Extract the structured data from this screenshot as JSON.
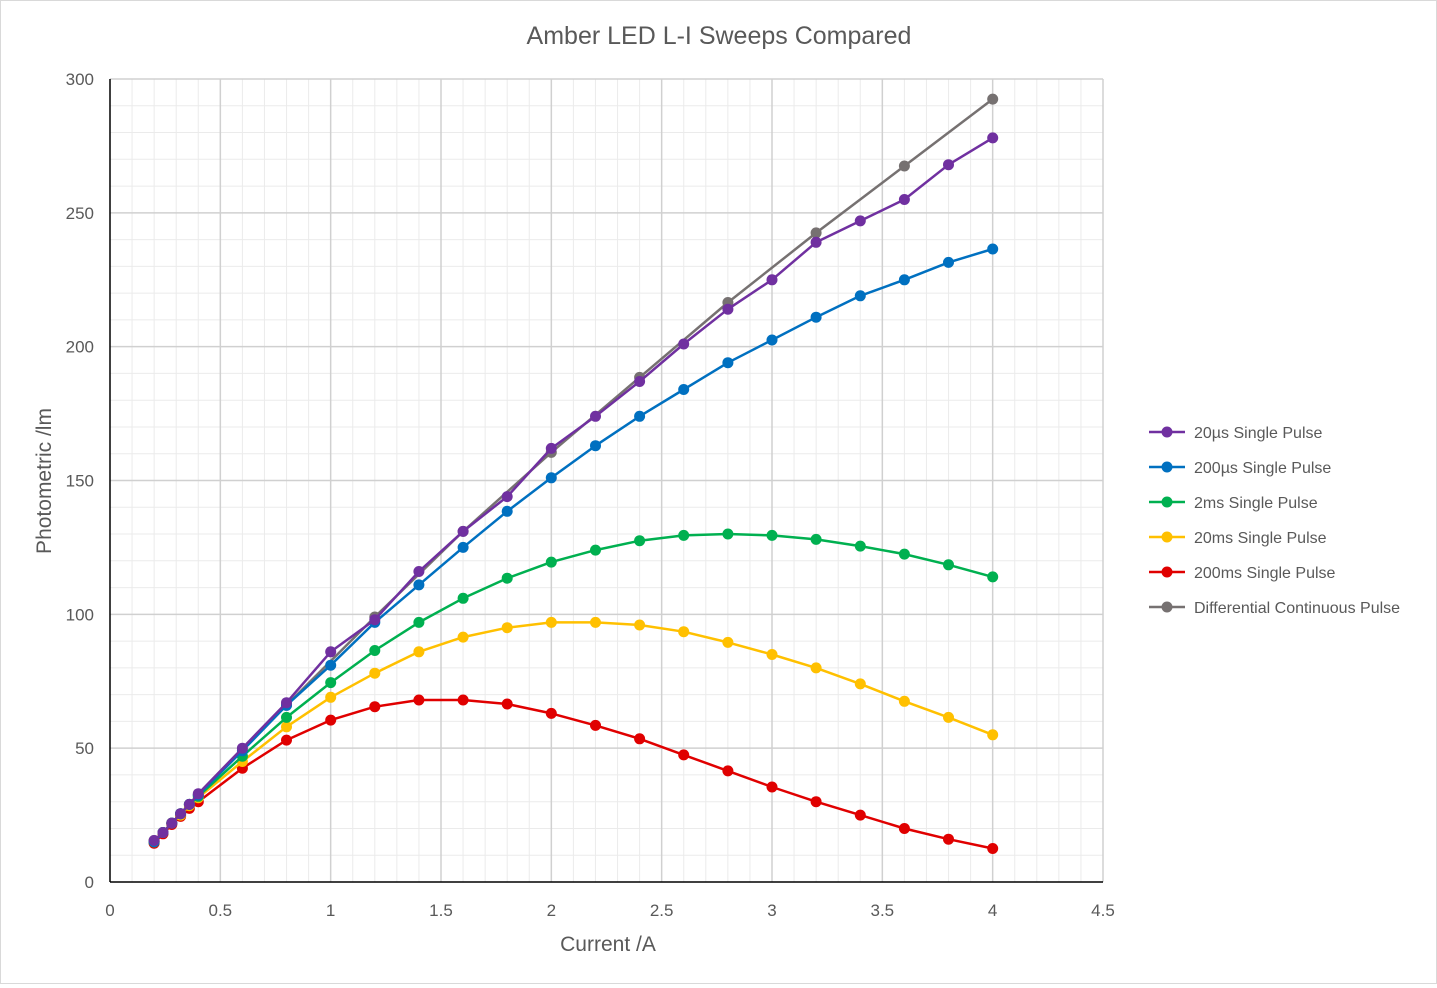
{
  "chart_data": {
    "type": "line",
    "title": "Amber LED L-I Sweeps Compared",
    "xlabel": "Current /A",
    "ylabel": "Photometric /lm",
    "xlim": [
      0,
      4.5
    ],
    "ylim": [
      0,
      300
    ],
    "x_ticks": [
      "0",
      "0.5",
      "1",
      "1.5",
      "2",
      "2.5",
      "3",
      "3.5",
      "4",
      "4.5"
    ],
    "y_ticks": [
      "0",
      "50",
      "100",
      "150",
      "200",
      "250",
      "300"
    ],
    "grid": true,
    "legend_position": "right",
    "series": [
      {
        "name": "20µs Single Pulse",
        "color": "#7030a0",
        "points": [
          [
            0.2,
            15.5
          ],
          [
            0.24,
            18.5
          ],
          [
            0.28,
            22
          ],
          [
            0.32,
            25.5
          ],
          [
            0.36,
            29
          ],
          [
            0.4,
            33
          ],
          [
            0.6,
            50
          ],
          [
            0.8,
            67
          ],
          [
            1.0,
            86
          ],
          [
            1.2,
            98
          ],
          [
            1.4,
            116
          ],
          [
            1.6,
            131
          ],
          [
            1.8,
            144
          ],
          [
            2.0,
            162
          ],
          [
            2.2,
            174
          ],
          [
            2.4,
            187
          ],
          [
            2.6,
            201
          ],
          [
            2.8,
            214
          ],
          [
            3.0,
            225
          ],
          [
            3.2,
            239
          ],
          [
            3.4,
            247
          ],
          [
            3.6,
            255
          ],
          [
            3.8,
            268
          ],
          [
            4.0,
            278
          ]
        ]
      },
      {
        "name": "200µs Single Pulse",
        "color": "#0070c0",
        "points": [
          [
            0.2,
            15
          ],
          [
            0.24,
            18.5
          ],
          [
            0.28,
            22
          ],
          [
            0.32,
            25.5
          ],
          [
            0.36,
            29
          ],
          [
            0.4,
            32.5
          ],
          [
            0.6,
            49
          ],
          [
            0.8,
            66
          ],
          [
            1.0,
            81
          ],
          [
            1.2,
            97
          ],
          [
            1.4,
            111
          ],
          [
            1.6,
            125
          ],
          [
            1.8,
            138.5
          ],
          [
            2.0,
            151
          ],
          [
            2.2,
            163
          ],
          [
            2.4,
            174
          ],
          [
            2.6,
            184
          ],
          [
            2.8,
            194
          ],
          [
            3.0,
            202.5
          ],
          [
            3.2,
            211
          ],
          [
            3.4,
            219
          ],
          [
            3.6,
            225
          ],
          [
            3.8,
            231.5
          ],
          [
            4.0,
            236.5
          ]
        ]
      },
      {
        "name": "2ms Single Pulse",
        "color": "#00b050",
        "points": [
          [
            0.2,
            15
          ],
          [
            0.24,
            18.5
          ],
          [
            0.28,
            22
          ],
          [
            0.32,
            25.5
          ],
          [
            0.36,
            29
          ],
          [
            0.4,
            32
          ],
          [
            0.6,
            47
          ],
          [
            0.8,
            61.5
          ],
          [
            1.0,
            74.5
          ],
          [
            1.2,
            86.5
          ],
          [
            1.4,
            97
          ],
          [
            1.6,
            106
          ],
          [
            1.8,
            113.5
          ],
          [
            2.0,
            119.5
          ],
          [
            2.2,
            124
          ],
          [
            2.4,
            127.5
          ],
          [
            2.6,
            129.5
          ],
          [
            2.8,
            130
          ],
          [
            3.0,
            129.5
          ],
          [
            3.2,
            128
          ],
          [
            3.4,
            125.5
          ],
          [
            3.6,
            122.5
          ],
          [
            3.8,
            118.5
          ],
          [
            4.0,
            114
          ]
        ]
      },
      {
        "name": "20ms Single Pulse",
        "color": "#ffc000",
        "points": [
          [
            0.2,
            15
          ],
          [
            0.24,
            18.5
          ],
          [
            0.28,
            22
          ],
          [
            0.32,
            25
          ],
          [
            0.36,
            28.5
          ],
          [
            0.4,
            31.5
          ],
          [
            0.6,
            45
          ],
          [
            0.8,
            58
          ],
          [
            1.0,
            69
          ],
          [
            1.2,
            78
          ],
          [
            1.4,
            86
          ],
          [
            1.6,
            91.5
          ],
          [
            1.8,
            95
          ],
          [
            2.0,
            97
          ],
          [
            2.2,
            97
          ],
          [
            2.4,
            96
          ],
          [
            2.6,
            93.5
          ],
          [
            2.8,
            89.5
          ],
          [
            3.0,
            85
          ],
          [
            3.2,
            80
          ],
          [
            3.4,
            74
          ],
          [
            3.6,
            67.5
          ],
          [
            3.8,
            61.5
          ],
          [
            4.0,
            55
          ]
        ]
      },
      {
        "name": "200ms Single Pulse",
        "color": "#e00000",
        "points": [
          [
            0.2,
            14.5
          ],
          [
            0.24,
            18
          ],
          [
            0.28,
            21.5
          ],
          [
            0.32,
            24.5
          ],
          [
            0.36,
            27.5
          ],
          [
            0.4,
            30
          ],
          [
            0.6,
            42.5
          ],
          [
            0.8,
            53
          ],
          [
            1.0,
            60.5
          ],
          [
            1.2,
            65.5
          ],
          [
            1.4,
            68
          ],
          [
            1.6,
            68
          ],
          [
            1.8,
            66.5
          ],
          [
            2.0,
            63
          ],
          [
            2.2,
            58.5
          ],
          [
            2.4,
            53.5
          ],
          [
            2.6,
            47.5
          ],
          [
            2.8,
            41.5
          ],
          [
            3.0,
            35.5
          ],
          [
            3.2,
            30
          ],
          [
            3.4,
            25
          ],
          [
            3.6,
            20
          ],
          [
            3.8,
            16
          ],
          [
            4.0,
            12.5
          ]
        ]
      },
      {
        "name": "Differential Continuous Pulse",
        "color": "#767171",
        "points": [
          [
            0.2,
            15.5
          ],
          [
            0.24,
            18.5
          ],
          [
            0.28,
            22
          ],
          [
            0.32,
            25.5
          ],
          [
            0.36,
            29
          ],
          [
            0.4,
            32.5
          ],
          [
            0.8,
            66
          ],
          [
            1.2,
            99
          ],
          [
            1.6,
            131
          ],
          [
            2.0,
            160.5
          ],
          [
            2.4,
            188.5
          ],
          [
            2.8,
            216.5
          ],
          [
            3.2,
            242.5
          ],
          [
            3.6,
            267.5
          ],
          [
            4.0,
            292.5
          ]
        ]
      }
    ]
  }
}
